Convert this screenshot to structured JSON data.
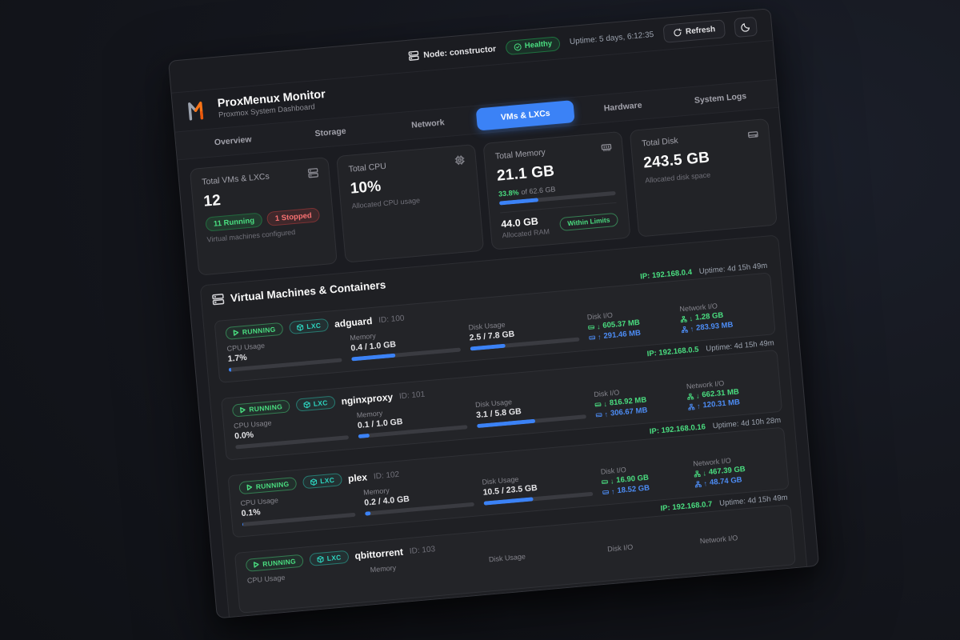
{
  "header": {
    "node_label": "Node: constructor",
    "health_status": "Healthy",
    "uptime": "Uptime: 5 days, 6:12:35",
    "refresh_label": "Refresh"
  },
  "brand": {
    "title": "ProxMenux Monitor",
    "subtitle": "Proxmox System Dashboard"
  },
  "tabs": [
    {
      "label": "Overview",
      "active": false
    },
    {
      "label": "Storage",
      "active": false
    },
    {
      "label": "Network",
      "active": false
    },
    {
      "label": "VMs & LXCs",
      "active": true
    },
    {
      "label": "Hardware",
      "active": false
    },
    {
      "label": "System Logs",
      "active": false
    }
  ],
  "summary_cards": {
    "vms": {
      "label": "Total VMs & LXCs",
      "value": "12",
      "running_badge": "11 Running",
      "stopped_badge": "1 Stopped",
      "caption": "Virtual machines configured"
    },
    "cpu": {
      "label": "Total CPU",
      "value": "10%",
      "caption": "Allocated CPU usage"
    },
    "memory": {
      "label": "Total Memory",
      "value": "21.1 GB",
      "percent_text": "33.8%",
      "of_text": "of 62.6 GB",
      "bar_percent": 33.8,
      "allocated_value": "44.0 GB",
      "allocated_caption": "Allocated RAM",
      "status_badge": "Within Limits"
    },
    "disk": {
      "label": "Total Disk",
      "value": "243.5 GB",
      "caption": "Allocated disk space"
    }
  },
  "vm_section": {
    "title": "Virtual Machines & Containers",
    "labels": {
      "status": "RUNNING",
      "type": "LXC",
      "cpu": "CPU Usage",
      "memory": "Memory",
      "disk": "Disk Usage",
      "disk_io": "Disk I/O",
      "net_io": "Network I/O"
    },
    "rows": [
      {
        "name": "adguard",
        "id": "ID: 100",
        "ip": "IP: 192.168.0.4",
        "uptime": "Uptime: 4d 15h 49m",
        "cpu": "1.7%",
        "cpu_pct": 2,
        "mem": "0.4 / 1.0 GB",
        "mem_pct": 40,
        "disk": "2.5 / 7.8 GB",
        "disk_pct": 32,
        "disk_down": "605.37 MB",
        "disk_up": "291.46 MB",
        "net_down": "1.28 GB",
        "net_up": "283.93 MB"
      },
      {
        "name": "nginxproxy",
        "id": "ID: 101",
        "ip": "IP: 192.168.0.5",
        "uptime": "Uptime: 4d 15h 49m",
        "cpu": "0.0%",
        "cpu_pct": 0,
        "mem": "0.1 / 1.0 GB",
        "mem_pct": 10,
        "disk": "3.1 / 5.8 GB",
        "disk_pct": 53,
        "disk_down": "816.92 MB",
        "disk_up": "306.67 MB",
        "net_down": "662.31 MB",
        "net_up": "120.31 MB"
      },
      {
        "name": "plex",
        "id": "ID: 102",
        "ip": "IP: 192.168.0.16",
        "uptime": "Uptime: 4d 10h 28m",
        "cpu": "0.1%",
        "cpu_pct": 1,
        "mem": "0.2 / 4.0 GB",
        "mem_pct": 5,
        "disk": "10.5 / 23.5 GB",
        "disk_pct": 45,
        "disk_down": "16.90 GB",
        "disk_up": "18.52 GB",
        "net_down": "467.39 GB",
        "net_up": "48.74 GB"
      },
      {
        "name": "qbittorrent",
        "id": "ID: 103",
        "ip": "IP: 192.168.0.7",
        "uptime": "Uptime: 4d 15h 49m",
        "cpu": "",
        "cpu_pct": 0,
        "mem": "",
        "mem_pct": 0,
        "disk": "",
        "disk_pct": 0,
        "disk_down": "",
        "disk_up": "",
        "net_down": "",
        "net_up": ""
      }
    ]
  },
  "colors": {
    "accent_blue": "#3b82f6",
    "status_green": "#4ade80",
    "status_red": "#f87171",
    "lxc_teal": "#2dd4bf"
  }
}
